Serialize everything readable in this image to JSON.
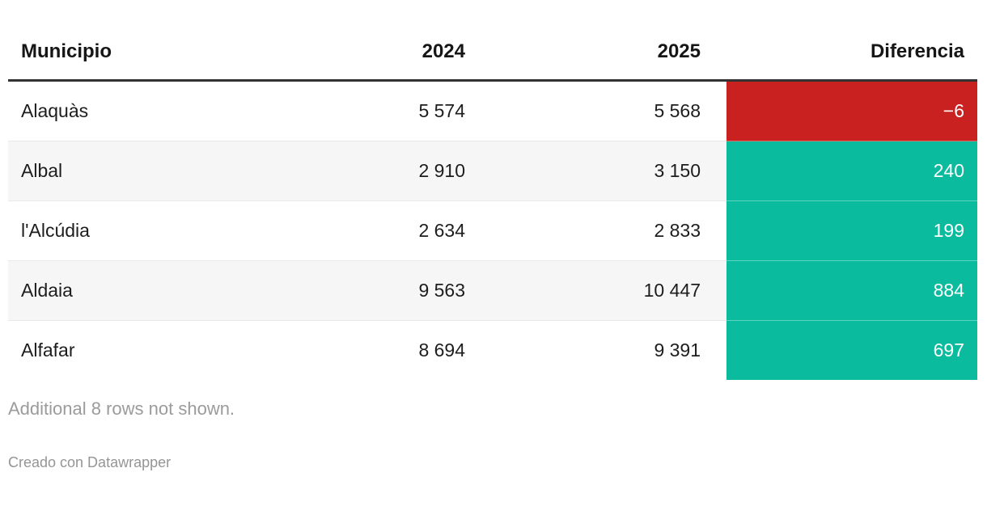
{
  "chart_data": {
    "type": "table",
    "columns": [
      "Municipio",
      "2024",
      "2025",
      "Diferencia"
    ],
    "rows": [
      {
        "municipio": "Alaquàs",
        "y2024": 5574,
        "y2025": 5568,
        "diferencia": -6
      },
      {
        "municipio": "Albal",
        "y2024": 2910,
        "y2025": 3150,
        "diferencia": 240
      },
      {
        "municipio": "l'Alcúdia",
        "y2024": 2634,
        "y2025": 2833,
        "diferencia": 199
      },
      {
        "municipio": "Aldaia",
        "y2024": 9563,
        "y2025": 10447,
        "diferencia": 884
      },
      {
        "municipio": "Alfafar",
        "y2024": 8694,
        "y2025": 9391,
        "diferencia": 697
      }
    ],
    "notes": "Additional 8 rows not shown.",
    "layout_hints": {
      "diferencia_cell_fill": "conditional",
      "positive_color": "#0abb9d",
      "negative_color": "#c8211f",
      "zebra_striping": true
    }
  },
  "table": {
    "header": {
      "municipio": "Municipio",
      "y2024": "2024",
      "y2025": "2025",
      "diferencia": "Diferencia"
    },
    "rows": [
      {
        "municipio": "Alaquàs",
        "y2024": "5 574",
        "y2025": "5 568",
        "diferencia": "−6",
        "trend": "negative"
      },
      {
        "municipio": "Albal",
        "y2024": "2 910",
        "y2025": "3 150",
        "diferencia": "240",
        "trend": "positive"
      },
      {
        "municipio": "l'Alcúdia",
        "y2024": "2 634",
        "y2025": "2 833",
        "diferencia": "199",
        "trend": "positive"
      },
      {
        "municipio": "Aldaia",
        "y2024": "9 563",
        "y2025": "10 447",
        "diferencia": "884",
        "trend": "positive"
      },
      {
        "municipio": "Alfafar",
        "y2024": "8 694",
        "y2025": "9 391",
        "diferencia": "697",
        "trend": "positive"
      }
    ]
  },
  "colors": {
    "positive": "#0abb9d",
    "negative": "#c8211f",
    "header_border": "#333333",
    "row_border": "#e9e9e9",
    "stripe": "#f6f6f6",
    "note_gray": "#9b9b9b",
    "attribution_gray": "#959595"
  },
  "footer": {
    "truncation_note": "Additional 8 rows not shown.",
    "attribution": "Creado con Datawrapper"
  }
}
